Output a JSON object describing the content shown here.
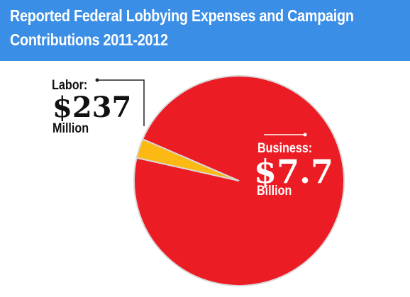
{
  "header": {
    "title_line1": "Reported Federal Lobbying Expenses and Campaign",
    "title_line2": "Contributions 2011-2012"
  },
  "colors": {
    "header_bg": "#3a8ee6",
    "business": "#ec1c24",
    "labor": "#fdb913",
    "slice_border": "#d8d8d8"
  },
  "chart_data": {
    "type": "pie",
    "title": "Reported Federal Lobbying Expenses and Campaign Contributions 2011-2012",
    "slices": [
      {
        "name": "Business",
        "label": "Business:",
        "amount": "$7.7",
        "unit": "Billion",
        "value": 7.7,
        "color": "#ec1c24"
      },
      {
        "name": "Labor",
        "label": "Labor:",
        "amount": "$237",
        "unit": "Million",
        "value": 0.237,
        "color": "#fdb913"
      }
    ],
    "value_units": "billion USD"
  }
}
